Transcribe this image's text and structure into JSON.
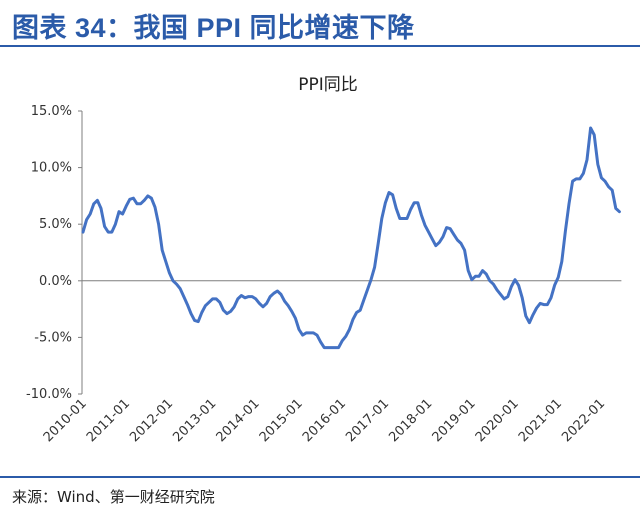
{
  "header": {
    "title": "图表 34：我国 PPI 同比增速下降"
  },
  "footer": {
    "source": "来源：Wind、第一财经研究院"
  },
  "colors": {
    "accent": "#2b5ba9",
    "series": "#4472c4"
  },
  "chart_data": {
    "type": "line",
    "title": "PPI同比",
    "xlabel": "",
    "ylabel": "",
    "ylim": [
      -10,
      15
    ],
    "y_ticks": [
      "15.0%",
      "10.0%",
      "5.0%",
      "0.0%",
      "-5.0%",
      "-10.0%"
    ],
    "y_tick_values": [
      15,
      10,
      5,
      0,
      -5,
      -10
    ],
    "x_ticks": [
      "2010-01",
      "2011-01",
      "2012-01",
      "2013-01",
      "2014-01",
      "2015-01",
      "2016-01",
      "2017-01",
      "2018-01",
      "2019-01",
      "2020-01",
      "2021-01",
      "2022-01"
    ],
    "x_tick_index": [
      0,
      12,
      24,
      36,
      48,
      60,
      72,
      84,
      96,
      108,
      120,
      132,
      144
    ],
    "grid": false,
    "series": [
      {
        "name": "PPI同比",
        "start": "2010-01",
        "values": [
          4.3,
          5.4,
          5.9,
          6.8,
          7.1,
          6.4,
          4.8,
          4.3,
          4.3,
          5.0,
          6.1,
          5.9,
          6.6,
          7.2,
          7.3,
          6.8,
          6.8,
          7.1,
          7.5,
          7.3,
          6.5,
          5.0,
          2.7,
          1.7,
          0.7,
          0.0,
          -0.3,
          -0.7,
          -1.4,
          -2.1,
          -2.9,
          -3.5,
          -3.6,
          -2.8,
          -2.2,
          -1.9,
          -1.6,
          -1.6,
          -1.9,
          -2.6,
          -2.9,
          -2.7,
          -2.3,
          -1.6,
          -1.3,
          -1.5,
          -1.4,
          -1.4,
          -1.6,
          -2.0,
          -2.3,
          -2.0,
          -1.4,
          -1.1,
          -0.9,
          -1.2,
          -1.8,
          -2.2,
          -2.7,
          -3.3,
          -4.3,
          -4.8,
          -4.6,
          -4.6,
          -4.6,
          -4.8,
          -5.4,
          -5.9,
          -5.9,
          -5.9,
          -5.9,
          -5.9,
          -5.3,
          -4.9,
          -4.3,
          -3.4,
          -2.8,
          -2.6,
          -1.7,
          -0.8,
          0.1,
          1.2,
          3.3,
          5.5,
          6.9,
          7.8,
          7.6,
          6.4,
          5.5,
          5.5,
          5.5,
          6.3,
          6.9,
          6.9,
          5.8,
          4.9,
          4.3,
          3.7,
          3.1,
          3.4,
          3.9,
          4.7,
          4.6,
          4.1,
          3.6,
          3.3,
          2.7,
          0.9,
          0.1,
          0.4,
          0.4,
          0.9,
          0.6,
          0.0,
          -0.3,
          -0.8,
          -1.2,
          -1.6,
          -1.4,
          -0.5,
          0.1,
          -0.4,
          -1.5,
          -3.1,
          -3.7,
          -3.0,
          -2.4,
          -2.0,
          -2.1,
          -2.1,
          -1.5,
          -0.4,
          0.3,
          1.7,
          4.4,
          6.8,
          8.8,
          9.0,
          9.0,
          9.5,
          10.7,
          13.5,
          12.9,
          10.3,
          9.1,
          8.8,
          8.3,
          8.0,
          6.4,
          6.1
        ]
      }
    ]
  }
}
